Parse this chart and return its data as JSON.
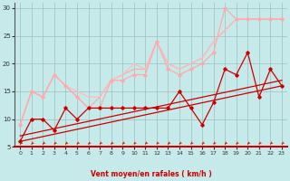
{
  "xlabel": "Vent moyen/en rafales ( km/h )",
  "xlim": [
    -0.5,
    23.5
  ],
  "ylim": [
    5,
    31
  ],
  "yticks": [
    5,
    10,
    15,
    20,
    25,
    30
  ],
  "xticks": [
    0,
    1,
    2,
    3,
    4,
    5,
    6,
    7,
    8,
    9,
    10,
    11,
    12,
    13,
    14,
    15,
    16,
    17,
    18,
    19,
    20,
    21,
    22,
    23
  ],
  "bg_color": "#c6eaea",
  "grid_color": "#9bbfbf",
  "series": [
    {
      "x": [
        0,
        1,
        2,
        3,
        4,
        5,
        6,
        7,
        8,
        9,
        10,
        11,
        12,
        13,
        14,
        15,
        16,
        17,
        18,
        19,
        20,
        21,
        22,
        23
      ],
      "y": [
        9,
        15,
        14,
        18,
        16,
        14,
        12,
        12,
        17,
        17,
        18,
        18,
        24,
        19,
        18,
        19,
        20,
        22,
        30,
        28,
        28,
        28,
        28,
        28
      ],
      "color": "#ffaaaa",
      "lw": 0.9,
      "marker": "D",
      "ms": 1.8,
      "zorder": 3
    },
    {
      "x": [
        0,
        1,
        2,
        3,
        4,
        5,
        6,
        7,
        8,
        9,
        10,
        11,
        12,
        13,
        14,
        15,
        16,
        17,
        18,
        19,
        20,
        21,
        22,
        23
      ],
      "y": [
        9,
        15,
        14,
        18,
        16,
        14,
        12,
        14,
        17,
        18,
        19,
        19,
        24,
        20,
        19,
        20,
        21,
        24,
        26,
        28,
        28,
        28,
        28,
        28
      ],
      "color": "#ffaaaa",
      "lw": 0.9,
      "marker": null,
      "ms": 0,
      "zorder": 2
    },
    {
      "x": [
        0,
        1,
        2,
        3,
        4,
        5,
        6,
        7,
        8,
        9,
        10,
        11,
        12,
        13,
        14,
        15,
        16,
        17,
        18,
        19,
        20,
        21,
        22,
        23
      ],
      "y": [
        9,
        15,
        14,
        18,
        16,
        15,
        14,
        14,
        17,
        18,
        20,
        19,
        24,
        20,
        19,
        20,
        21,
        24,
        26,
        28,
        28,
        28,
        28,
        28
      ],
      "color": "#ffbbbb",
      "lw": 0.9,
      "marker": null,
      "ms": 0,
      "zorder": 2
    },
    {
      "x": [
        0,
        1,
        2,
        3,
        4,
        5,
        6,
        7,
        8,
        9,
        10,
        11,
        12,
        13,
        14,
        15,
        16,
        17,
        18,
        19,
        20,
        21,
        22,
        23
      ],
      "y": [
        6,
        10,
        10,
        8,
        12,
        10,
        12,
        12,
        12,
        12,
        12,
        12,
        12,
        12,
        15,
        12,
        9,
        13,
        19,
        18,
        22,
        14,
        19,
        16
      ],
      "color": "#cc0000",
      "lw": 0.9,
      "marker": "D",
      "ms": 1.8,
      "zorder": 4
    },
    {
      "x": [
        0,
        23
      ],
      "y": [
        6,
        16
      ],
      "color": "#cc0000",
      "lw": 0.9,
      "marker": null,
      "ms": 0,
      "zorder": 2
    },
    {
      "x": [
        0,
        23
      ],
      "y": [
        7,
        17
      ],
      "color": "#cc0000",
      "lw": 0.9,
      "marker": null,
      "ms": 0,
      "zorder": 2
    }
  ],
  "arrow_color": "#cc2200"
}
